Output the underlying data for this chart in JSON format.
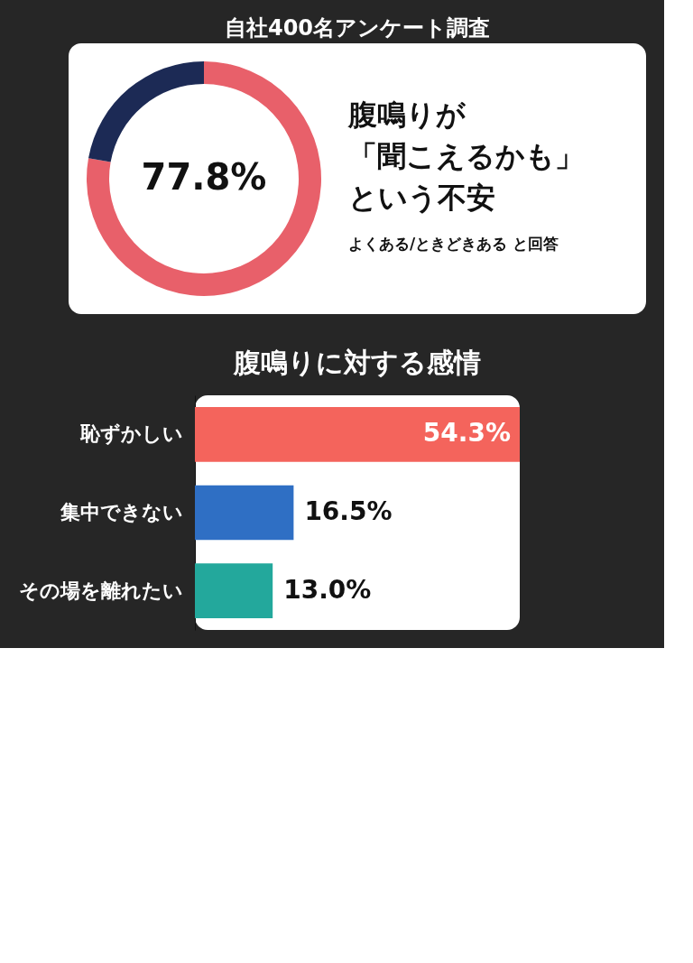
{
  "chart_data": [
    {
      "type": "donut",
      "title": "自社400名アンケート調査",
      "subtitle": "腹鳴りが「聞こえるかも」という不安",
      "annotations": [
        "よくある/ときどきある と回答"
      ],
      "categories": [
        null,
        null
      ],
      "values": [
        77.8,
        22.2
      ],
      "colors": [
        "#e8606a",
        "#1c2a55"
      ],
      "value_labels": [
        "77.8%",
        null
      ]
    },
    {
      "type": "bar",
      "orientation": "horizontal",
      "title": "腹鳴りに対する感情",
      "categories": [
        "恥ずかしい",
        "集中できない",
        "その場を離れたい"
      ],
      "values": [
        54.3,
        16.5,
        13.0
      ],
      "colors": [
        "#f4645c",
        "#2f6fc4",
        "#23a89c"
      ],
      "value_labels": [
        "54.3%",
        "16.5%",
        "13.0%"
      ]
    }
  ]
}
